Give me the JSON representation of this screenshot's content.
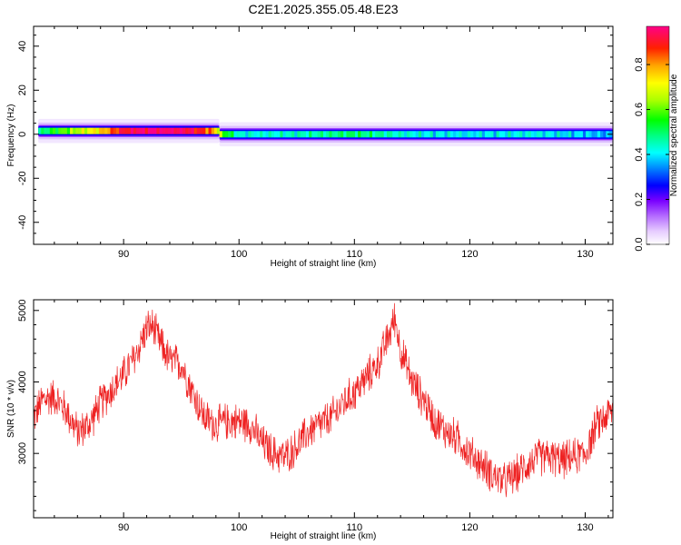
{
  "title": "C2E1.2025.355.05.48.E23",
  "chart_data": [
    {
      "type": "heatmap",
      "xlabel": "Height of straight line (km)",
      "ylabel": "Frequency (Hz)",
      "xlim": [
        82.2,
        132.4
      ],
      "ylim": [
        -50,
        49
      ],
      "x_ticks": [
        90,
        100,
        110,
        120,
        130
      ],
      "y_ticks": [
        -40,
        -20,
        0,
        20,
        40
      ],
      "colorbar": {
        "label": "Normalized spectral amplitude",
        "range": [
          0,
          0.97
        ],
        "ticks": [
          0.0,
          0.2,
          0.4,
          0.6,
          0.8
        ],
        "tick_labels": [
          "0.0",
          "0.2",
          "0.4",
          "0.6",
          "0.8"
        ]
      },
      "band": {
        "center_freq_segments": [
          {
            "x": [
              82.6,
              98.3
            ],
            "freq": 1.5
          },
          {
            "x": [
              98.3,
              132.4
            ],
            "freq": 0
          }
        ],
        "amplitude_profile": [
          {
            "x": 82.6,
            "a": 0.45
          },
          {
            "x": 84.0,
            "a": 0.55
          },
          {
            "x": 86.0,
            "a": 0.65
          },
          {
            "x": 88.0,
            "a": 0.75
          },
          {
            "x": 89.5,
            "a": 0.88
          },
          {
            "x": 91.0,
            "a": 0.95
          },
          {
            "x": 93.0,
            "a": 0.97
          },
          {
            "x": 95.0,
            "a": 0.95
          },
          {
            "x": 96.5,
            "a": 0.9
          },
          {
            "x": 97.8,
            "a": 0.8
          },
          {
            "x": 98.5,
            "a": 0.6
          },
          {
            "x": 100.0,
            "a": 0.42
          },
          {
            "x": 105.0,
            "a": 0.44
          },
          {
            "x": 110.0,
            "a": 0.5
          },
          {
            "x": 115.0,
            "a": 0.42
          },
          {
            "x": 120.0,
            "a": 0.4
          },
          {
            "x": 125.0,
            "a": 0.42
          },
          {
            "x": 130.0,
            "a": 0.38
          },
          {
            "x": 132.4,
            "a": 0.35
          }
        ]
      }
    },
    {
      "type": "line",
      "xlabel": "Height of straight line (km)",
      "ylabel": "SNR (10 * v/v)",
      "xlim": [
        82.2,
        132.4
      ],
      "ylim": [
        2100,
        5150
      ],
      "x_ticks": [
        90,
        100,
        110,
        120,
        130
      ],
      "y_ticks": [
        3000,
        4000,
        5000
      ],
      "color": "#ee2222",
      "series": [
        {
          "name": "",
          "x": [
            82.2,
            83,
            84,
            85,
            86,
            87,
            88,
            89,
            90,
            91,
            92,
            92.5,
            93,
            94,
            95,
            96,
            97,
            98,
            99,
            100,
            101,
            102,
            103,
            104,
            105,
            106,
            107,
            108,
            109,
            110,
            111,
            112,
            113,
            113.5,
            114,
            115,
            116,
            117,
            118,
            119,
            120,
            121,
            122,
            123,
            124,
            125,
            126,
            127,
            128,
            129,
            130,
            131,
            132,
            132.4
          ],
          "values": [
            3500,
            3750,
            3800,
            3600,
            3300,
            3400,
            3700,
            3900,
            4100,
            4350,
            4750,
            4780,
            4600,
            4300,
            4250,
            3850,
            3500,
            3400,
            3450,
            3450,
            3400,
            3150,
            3000,
            2950,
            3100,
            3300,
            3400,
            3500,
            3700,
            3850,
            4050,
            4250,
            4650,
            4900,
            4450,
            4000,
            3750,
            3450,
            3300,
            3200,
            3000,
            2850,
            2700,
            2600,
            2700,
            2850,
            2950,
            2950,
            2900,
            2950,
            3000,
            3400,
            3550,
            3600
          ]
        }
      ]
    }
  ]
}
